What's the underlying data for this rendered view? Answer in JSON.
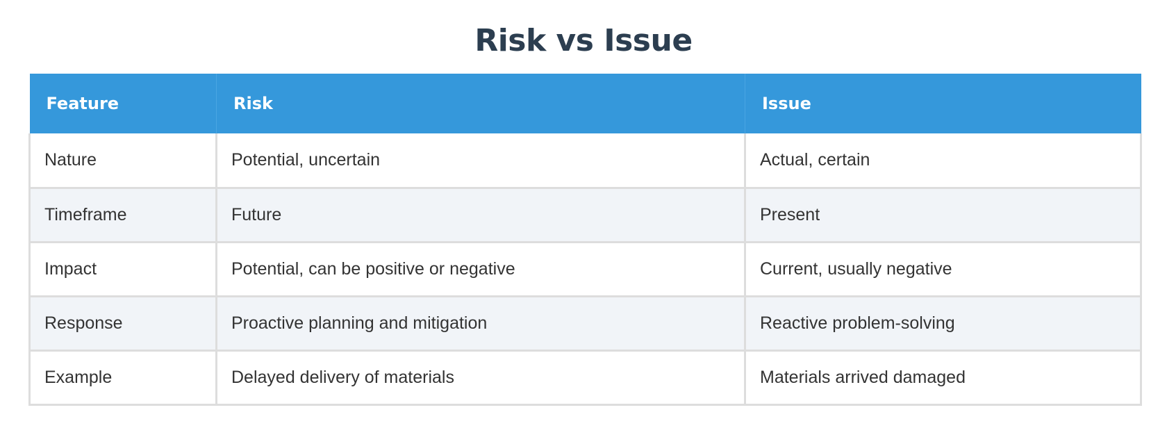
{
  "title": "Risk vs Issue",
  "colors": {
    "header_bg": "#3598db",
    "title_text": "#2c3e50",
    "alt_row_bg": "#f1f4f8",
    "border": "#dddddd"
  },
  "table": {
    "headers": [
      "Feature",
      "Risk",
      "Issue"
    ],
    "rows": [
      [
        "Nature",
        "Potential, uncertain",
        "Actual, certain"
      ],
      [
        "Timeframe",
        "Future",
        "Present"
      ],
      [
        "Impact",
        "Potential, can be positive or negative",
        "Current, usually negative"
      ],
      [
        "Response",
        "Proactive planning and mitigation",
        "Reactive problem-solving"
      ],
      [
        "Example",
        "Delayed delivery of materials",
        "Materials arrived damaged"
      ]
    ]
  }
}
